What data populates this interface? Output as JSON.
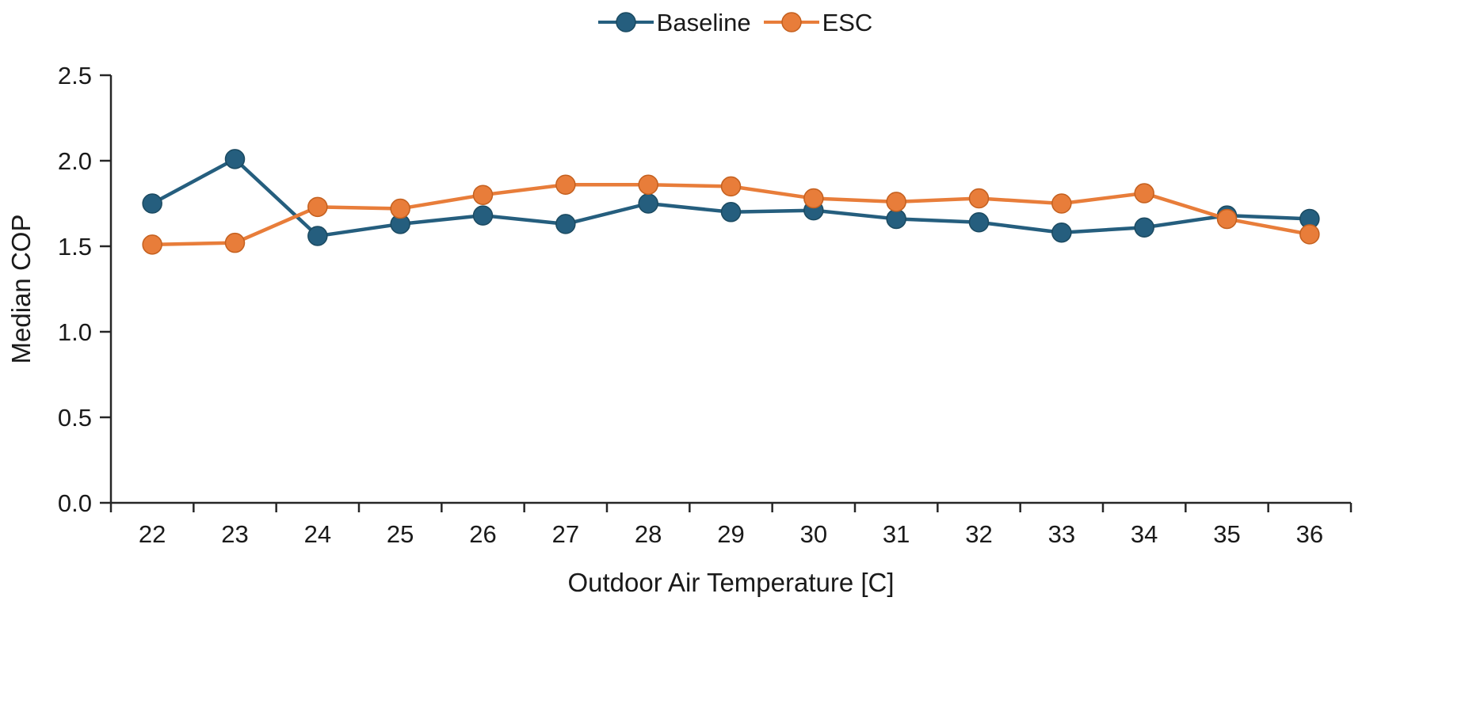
{
  "chart_data": {
    "type": "line",
    "title": "",
    "xlabel": "Outdoor Air Temperature [C]",
    "ylabel": "Median COP",
    "categories": [
      22,
      23,
      24,
      25,
      26,
      27,
      28,
      29,
      30,
      31,
      32,
      33,
      34,
      35,
      36
    ],
    "series": [
      {
        "name": "Baseline",
        "color": "#255e7e",
        "marker_border": "#1b4a61",
        "values": [
          1.75,
          2.01,
          1.56,
          1.63,
          1.68,
          1.63,
          1.75,
          1.7,
          1.71,
          1.66,
          1.64,
          1.58,
          1.61,
          1.68,
          1.66
        ]
      },
      {
        "name": "ESC",
        "color": "#e87d3a",
        "marker_border": "#c4601f",
        "values": [
          1.51,
          1.52,
          1.73,
          1.72,
          1.8,
          1.86,
          1.86,
          1.85,
          1.78,
          1.76,
          1.78,
          1.75,
          1.81,
          1.66,
          1.57
        ]
      }
    ],
    "ylim": [
      0.0,
      2.5
    ],
    "ytick_step": 0.5,
    "ytick_labels": [
      "0.0",
      "0.5",
      "1.0",
      "1.5",
      "2.0",
      "2.5"
    ],
    "grid": false,
    "legend_position": "top",
    "axis_color": "#262626",
    "tick_label_color": "#1a1a1a"
  }
}
